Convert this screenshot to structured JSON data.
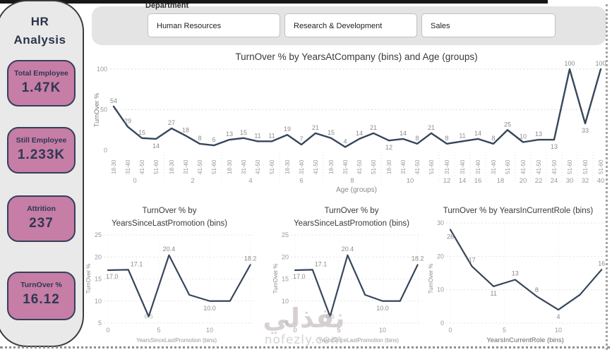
{
  "sidebar": {
    "title_line1": "HR",
    "title_line2": "Analysis",
    "cards": [
      {
        "label": "Total Employee",
        "value": "1.47K"
      },
      {
        "label": "Still Employee",
        "value": "1.233K"
      },
      {
        "label": "Attrition",
        "value": "237"
      },
      {
        "label": "TurnOver %",
        "value": "16.12"
      }
    ]
  },
  "department": {
    "label": "Department",
    "options": [
      "Human Resources",
      "Research & Development",
      "Sales"
    ]
  },
  "watermark": {
    "text": "نفذلي",
    "domain": "nofezly.com"
  },
  "colors": {
    "card_bg": "#c67da6",
    "card_border": "#36405a",
    "line": "#36465b",
    "data_label": "#8c8c8c",
    "tick": "#9a9a9a",
    "grid": "#dedede",
    "title": "#3a3a3a"
  },
  "chart_data": [
    {
      "id": "main",
      "type": "line",
      "title": "TurnOver % by YearsAtCompany (bins) and Age (groups)",
      "ylabel": "TurnOver %",
      "xlabel": "Age (groups)",
      "ylim": [
        0,
        100
      ],
      "yticks": [
        0,
        50,
        100
      ],
      "legend": "none",
      "grid": "dotted-horizontal",
      "groups": [
        {
          "name": "0",
          "ages": [
            "18-30",
            "31-40",
            "41-50",
            "51-60"
          ],
          "values": [
            54,
            29,
            15,
            14
          ],
          "label_below": [
            false,
            false,
            false,
            true
          ]
        },
        {
          "name": "2",
          "ages": [
            "18-30",
            "31-40",
            "41-50",
            "51-60"
          ],
          "values": [
            27,
            18,
            8,
            6
          ],
          "label_below": [
            false,
            false,
            false,
            false
          ]
        },
        {
          "name": "4",
          "ages": [
            "18-30",
            "31-40",
            "41-50",
            "51-60"
          ],
          "values": [
            13,
            15,
            11,
            11
          ],
          "label_below": [
            false,
            false,
            false,
            false
          ]
        },
        {
          "name": "6",
          "ages": [
            "18-30",
            "31-40",
            "41-50"
          ],
          "values": [
            19,
            7,
            21
          ],
          "label_below": [
            false,
            false,
            false
          ]
        },
        {
          "name": "8",
          "ages": [
            "18-30",
            "31-40",
            "41-50",
            "51-60"
          ],
          "values": [
            15,
            4,
            14,
            21
          ],
          "label_below": [
            false,
            false,
            false,
            false
          ]
        },
        {
          "name": "10",
          "ages": [
            "18-30",
            "31-40",
            "41-50",
            "51-60"
          ],
          "values": [
            12,
            14,
            8,
            21
          ],
          "label_below": [
            true,
            false,
            false,
            false
          ]
        },
        {
          "name": "12",
          "ages": [
            "31-40"
          ],
          "values": [
            8
          ],
          "label_below": [
            false
          ]
        },
        {
          "name": "14",
          "ages": [
            "31-40"
          ],
          "values": [
            11
          ],
          "label_below": [
            false
          ]
        },
        {
          "name": "16",
          "ages": [
            "31-40"
          ],
          "values": [
            14
          ],
          "label_below": [
            false
          ]
        },
        {
          "name": "18",
          "ages": [
            "31-40",
            "51-60"
          ],
          "values": [
            8,
            25
          ],
          "label_below": [
            false,
            false
          ]
        },
        {
          "name": "20",
          "ages": [
            "41-50"
          ],
          "values": [
            10
          ],
          "label_below": [
            false
          ]
        },
        {
          "name": "22",
          "ages": [
            "41-50"
          ],
          "values": [
            13
          ],
          "label_below": [
            false
          ]
        },
        {
          "name": "24",
          "ages": [
            "41-50"
          ],
          "values": [
            13
          ],
          "label_below": [
            true
          ]
        },
        {
          "name": "30",
          "ages": [
            "51-60"
          ],
          "values": [
            100
          ],
          "label_below": [
            false
          ]
        },
        {
          "name": "32",
          "ages": [
            "51-60"
          ],
          "values": [
            33
          ],
          "label_below": [
            true
          ]
        },
        {
          "name": "40",
          "ages": [
            "51-60"
          ],
          "values": [
            100
          ],
          "label_below": [
            false
          ]
        }
      ]
    },
    {
      "id": "promo1",
      "type": "line",
      "title_lines": [
        "TurnOver % by",
        "YearsSinceLastPromotion (bins)"
      ],
      "ylabel": "TurnOver %",
      "xlabel": "YearsSinceLastPromotion (bins)",
      "ylim": [
        5,
        25
      ],
      "yticks": [
        5,
        10,
        15,
        20,
        25
      ],
      "xlim": [
        0,
        14
      ],
      "xticks": [
        0,
        5,
        10
      ],
      "x": [
        0,
        2,
        4,
        6,
        8,
        10,
        12,
        14
      ],
      "y": [
        17.0,
        17.1,
        6.5,
        20.4,
        11.4,
        10.0,
        10.0,
        18.2
      ],
      "labels": [
        "17.0",
        "17.1",
        "6.5",
        "20.4",
        null,
        "10.0",
        null,
        "18.2"
      ],
      "label_pos": [
        "below-right",
        "right-above",
        "center",
        "above",
        null,
        "below",
        null,
        "above"
      ]
    },
    {
      "id": "promo2",
      "type": "line",
      "title_lines": [
        "TurnOver % by",
        "YearsSinceLastPromotion (bins)"
      ],
      "ylabel": "TurnOver %",
      "xlabel": "YearsSinceLastPromotion (bins)",
      "ylim": [
        5,
        25
      ],
      "yticks": [
        5,
        10,
        15,
        20,
        25
      ],
      "xlim": [
        0,
        14
      ],
      "xticks": [
        0,
        5,
        10
      ],
      "x": [
        0,
        2,
        4,
        6,
        8,
        10,
        12,
        14
      ],
      "y": [
        17.0,
        17.1,
        6.5,
        20.4,
        11.4,
        10.0,
        10.0,
        18.2
      ],
      "labels": [
        "17.0",
        "17.1",
        "6.5",
        "20.4",
        null,
        "10.0",
        null,
        "18.2"
      ],
      "label_pos": [
        "below-right",
        "right-above",
        "center",
        "above",
        null,
        "below",
        null,
        "above"
      ]
    },
    {
      "id": "role",
      "type": "line",
      "title_lines": [
        "TurnOver % by YearsInCurrentRole (bins)"
      ],
      "ylabel": "TurnOver %",
      "xlabel": "YearsInCurrentRole (bins)",
      "ylim": [
        0,
        30
      ],
      "yticks": [
        0,
        10,
        20,
        30
      ],
      "xlim": [
        0,
        14
      ],
      "xticks": [
        0,
        5,
        10
      ],
      "x": [
        0,
        2,
        4,
        6,
        8,
        10,
        12,
        14
      ],
      "y": [
        28,
        17,
        11,
        13,
        8,
        4,
        8.5,
        16
      ],
      "labels": [
        "28",
        "17",
        "11",
        "13",
        "8",
        "4",
        null,
        "16"
      ],
      "label_pos": [
        "below",
        "above",
        "below",
        "above",
        "above",
        "below",
        null,
        "above"
      ]
    }
  ]
}
